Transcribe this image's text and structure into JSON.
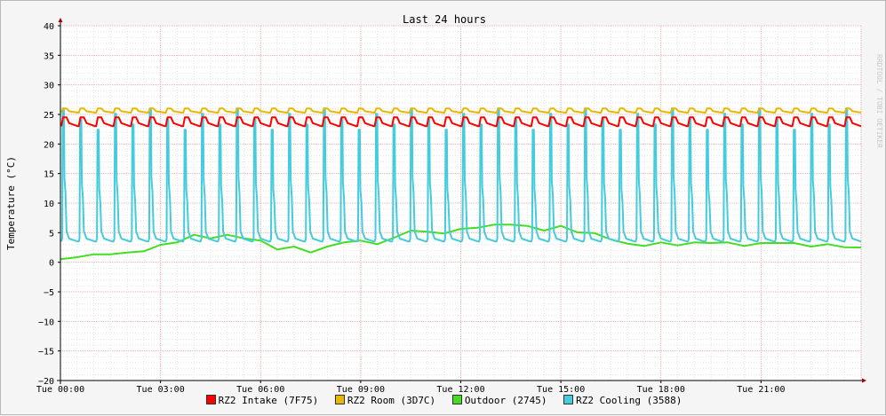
{
  "chart_data": {
    "type": "line",
    "title": "Last 24 hours",
    "ylabel": "Temperature (°C)",
    "xlabel": "",
    "watermark": "RRDTOOL / TOBI OETIKER",
    "ylim": [
      -20,
      40
    ],
    "y_ticks": [
      40,
      35,
      30,
      25,
      20,
      15,
      10,
      5,
      0,
      -5,
      -10,
      -15,
      -20
    ],
    "y_tick_labels": [
      "40",
      "35",
      "30",
      "25",
      "20",
      "15",
      "10",
      "5",
      "0",
      "−5",
      "−10",
      "−15",
      "−20"
    ],
    "x_range_hours": [
      0,
      24
    ],
    "x_ticks": [
      "Tue 00:00",
      "Tue 03:00",
      "Tue 06:00",
      "Tue 09:00",
      "Tue 12:00",
      "Tue 15:00",
      "Tue 18:00",
      "Tue 21:00"
    ],
    "grid": true,
    "legend_position": "bottom",
    "series": [
      {
        "name": "RZ2 Intake (7F75)",
        "color": "#ff0000",
        "pattern": "cycling",
        "base": 23,
        "peak": 24.5,
        "cycles": 46
      },
      {
        "name": "RZ2 Room (3D7C)",
        "color": "#e8b800",
        "pattern": "cycling",
        "base": 25.3,
        "peak": 26,
        "cycles": 46
      },
      {
        "name": "Outdoor (2745)",
        "color": "#44dd22",
        "pattern": "trend",
        "x": [
          0,
          0.5,
          1,
          1.5,
          2,
          2.5,
          3,
          3.5,
          4,
          4.5,
          5,
          5.5,
          6,
          6.5,
          7,
          7.5,
          8,
          8.5,
          9,
          9.5,
          10,
          10.5,
          11,
          11.5,
          12,
          12.5,
          13,
          13.5,
          14,
          14.5,
          15,
          15.5,
          16,
          16.5,
          17,
          17.5,
          18,
          18.5,
          19,
          19.5,
          20,
          20.5,
          21,
          21.5,
          22,
          22.5,
          23,
          23.5,
          24
        ],
        "y": [
          0.5,
          1,
          1.2,
          1.5,
          1.5,
          2,
          2.8,
          3.5,
          4.5,
          4.2,
          4.5,
          4.2,
          3.5,
          2.3,
          2.5,
          1.8,
          2.5,
          3.5,
          3.5,
          3.2,
          4,
          5.5,
          5,
          5,
          5.5,
          6,
          6.2,
          6.5,
          6,
          5.5,
          6,
          5.2,
          4.8,
          4,
          3,
          2.9,
          3.2,
          3,
          3.2,
          3.4,
          3.2,
          2.9,
          3.1,
          3.4,
          3.1,
          2.8,
          2.9,
          2.7,
          2.5
        ]
      },
      {
        "name": "RZ2 Cooling (3588)",
        "color": "#44ccdd",
        "pattern": "spikes",
        "base": 4,
        "peak": 26,
        "cycles": 46
      }
    ]
  }
}
